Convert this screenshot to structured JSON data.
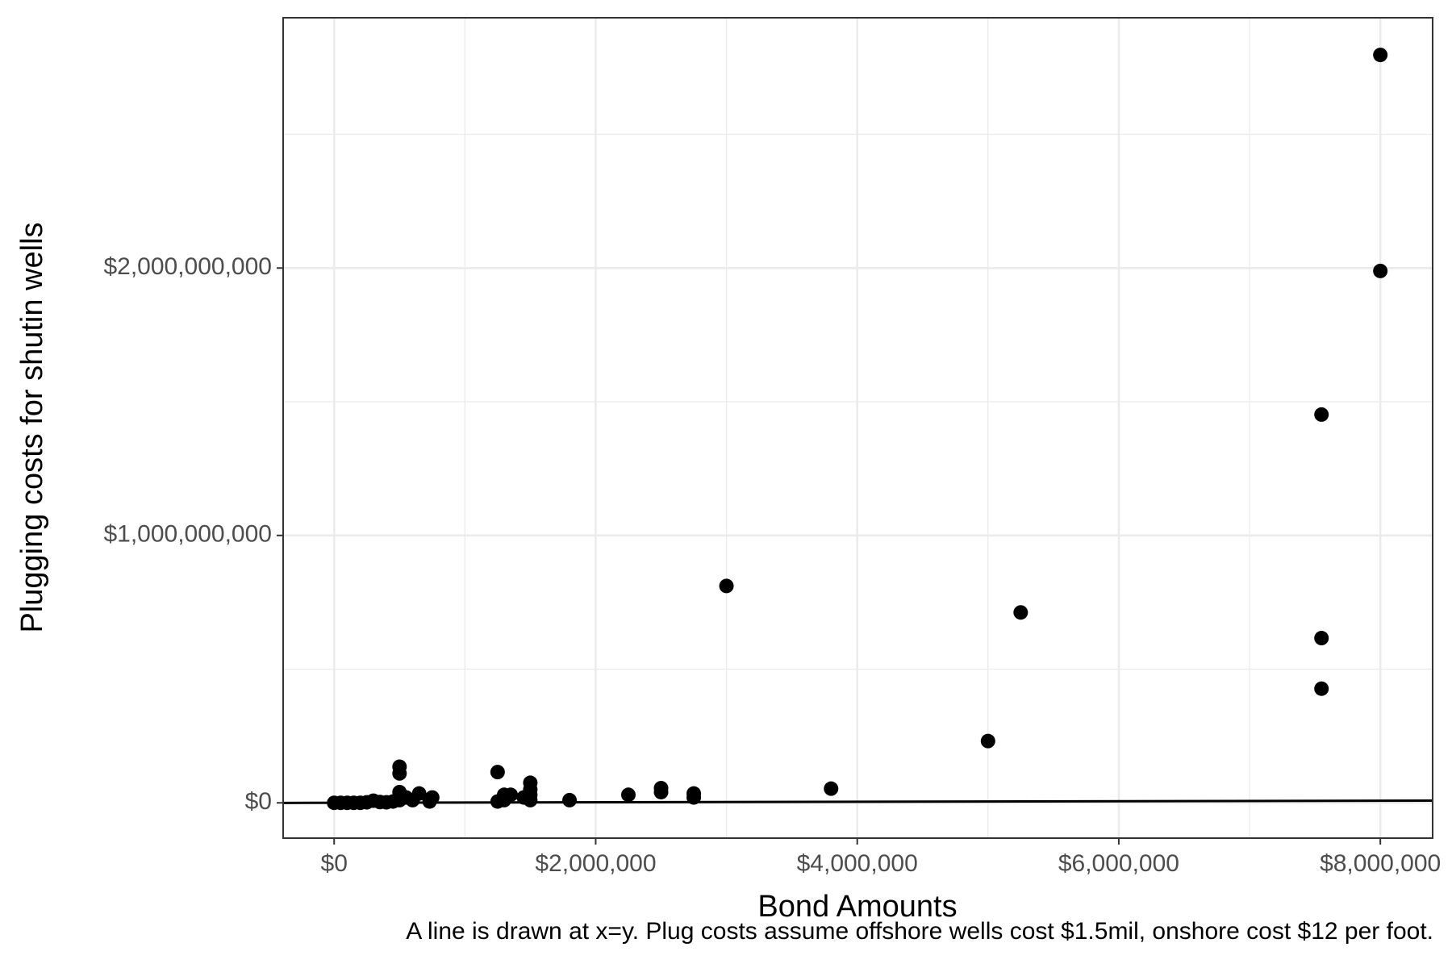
{
  "chart_data": {
    "type": "scatter",
    "x_label": "Bond Amounts",
    "y_label": "Plugging costs for shutin wells",
    "caption": "A line is drawn at x=y.  Plug costs assume offshore wells cost $1.5mil, onshore cost $12 per foot.",
    "color": "#000000",
    "grid": true,
    "minor_grid": true,
    "identity_line": true,
    "xlim": [
      -390000,
      8400000
    ],
    "ylim": [
      -132000000,
      2936000000
    ],
    "xticks": [
      {
        "value": 0,
        "label": "$0"
      },
      {
        "value": 2000000,
        "label": "$2,000,000"
      },
      {
        "value": 4000000,
        "label": "$4,000,000"
      },
      {
        "value": 6000000,
        "label": "$6,000,000"
      },
      {
        "value": 8000000,
        "label": "$8,000,000"
      }
    ],
    "yticks": [
      {
        "value": 0,
        "label": "$0"
      },
      {
        "value": 1000000000,
        "label": "$1,000,000,000"
      },
      {
        "value": 2000000000,
        "label": "$2,000,000,000"
      }
    ],
    "x": [
      8000000,
      8000000,
      7550000,
      7550000,
      7550000,
      3000000,
      5250000,
      5000000,
      3800000,
      2750000,
      2750000,
      2500000,
      2500000,
      2250000,
      1800000,
      1500000,
      1500000,
      1500000,
      1500000,
      1450000,
      1350000,
      1300000,
      1250000,
      1250000,
      1300000,
      500000,
      500000,
      500000,
      500000,
      450000,
      750000,
      730000,
      650000,
      600000,
      550000,
      0,
      50000,
      100000,
      150000,
      200000,
      250000,
      300000,
      350000,
      400000
    ],
    "values": [
      2797000000,
      1989000000,
      1452000000,
      616000000,
      427000000,
      811000000,
      712000000,
      231000000,
      53000000,
      20000000,
      35000000,
      55000000,
      40000000,
      30000000,
      10000000,
      75000000,
      50000000,
      30000000,
      10000000,
      20000000,
      30000000,
      30000000,
      115000000,
      5000000,
      10000000,
      135000000,
      110000000,
      40000000,
      10000000,
      5000000,
      20000000,
      5000000,
      35000000,
      10000000,
      20000000,
      0,
      0,
      0,
      0,
      0,
      2000000,
      8000000,
      3000000,
      2000000
    ]
  }
}
